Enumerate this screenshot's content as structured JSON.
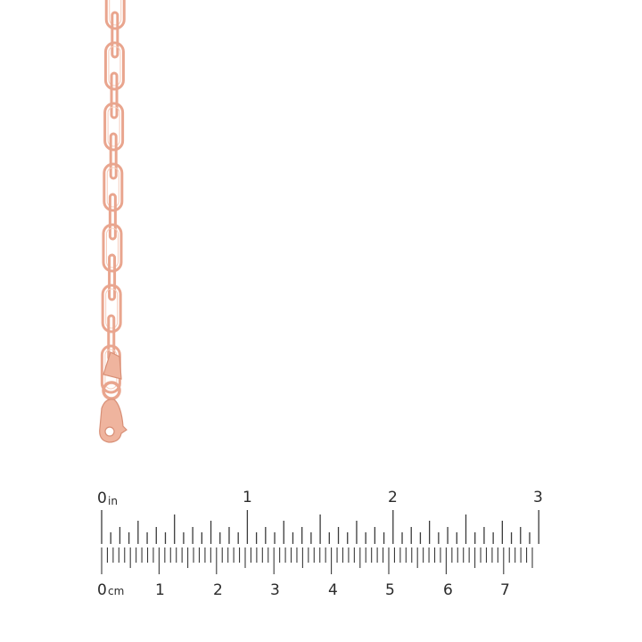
{
  "product": {
    "name": "rose gold paperclip link chain with lobster clasp",
    "metal_color": "#e9a58e"
  },
  "ruler": {
    "inch_unit": "in",
    "cm_unit": "cm",
    "inch_labels": [
      "0",
      "1",
      "2",
      "3"
    ],
    "cm_labels": [
      "0",
      "1",
      "2",
      "3",
      "4",
      "5",
      "6",
      "7"
    ],
    "tick_color": "#3a3a3a"
  }
}
